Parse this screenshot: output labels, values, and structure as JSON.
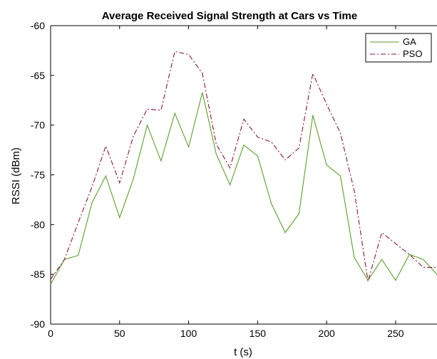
{
  "chart_data": {
    "type": "line",
    "title": "Average Received Signal Strength at Cars vs Time",
    "xlabel": "t (s)",
    "ylabel": "RSSI (dBm)",
    "xlim": [
      0,
      280
    ],
    "ylim": [
      -90,
      -60
    ],
    "x_ticks": [
      0,
      50,
      100,
      150,
      200,
      250
    ],
    "y_ticks": [
      -90,
      -85,
      -80,
      -75,
      -70,
      -65,
      -60
    ],
    "grid": false,
    "legend_position": "top-right",
    "series": [
      {
        "name": "GA",
        "color": "#5aa02c",
        "line_style": "solid",
        "x": [
          0,
          10,
          20,
          30,
          40,
          50,
          60,
          70,
          80,
          90,
          100,
          110,
          120,
          130,
          140,
          150,
          160,
          170,
          180,
          190,
          200,
          210,
          220,
          230,
          240,
          250,
          260,
          270,
          280
        ],
        "y": [
          -86.0,
          -83.5,
          -83.1,
          -77.8,
          -75.1,
          -79.3,
          -75.4,
          -70.0,
          -73.6,
          -68.8,
          -72.2,
          -66.7,
          -72.9,
          -76.0,
          -72.0,
          -73.1,
          -77.9,
          -80.8,
          -78.9,
          -69.0,
          -74.0,
          -75.1,
          -83.3,
          -85.6,
          -83.5,
          -85.6,
          -83.0,
          -83.5,
          -85.0
        ]
      },
      {
        "name": "PSO",
        "color": "#8b1538",
        "line_style": "dashdot",
        "x": [
          0,
          10,
          20,
          30,
          40,
          50,
          60,
          70,
          80,
          90,
          100,
          110,
          120,
          130,
          140,
          150,
          160,
          170,
          180,
          190,
          200,
          210,
          220,
          230,
          240,
          250,
          260,
          270,
          280
        ],
        "y": [
          -85.5,
          -83.5,
          -79.8,
          -76.2,
          -72.1,
          -75.8,
          -71.1,
          -68.4,
          -68.5,
          -62.6,
          -62.9,
          -64.8,
          -71.9,
          -74.3,
          -69.4,
          -71.2,
          -71.7,
          -73.5,
          -72.3,
          -64.8,
          -67.9,
          -70.8,
          -76.6,
          -85.7,
          -80.8,
          -81.9,
          -83.0,
          -84.3,
          -84.3
        ]
      }
    ]
  }
}
